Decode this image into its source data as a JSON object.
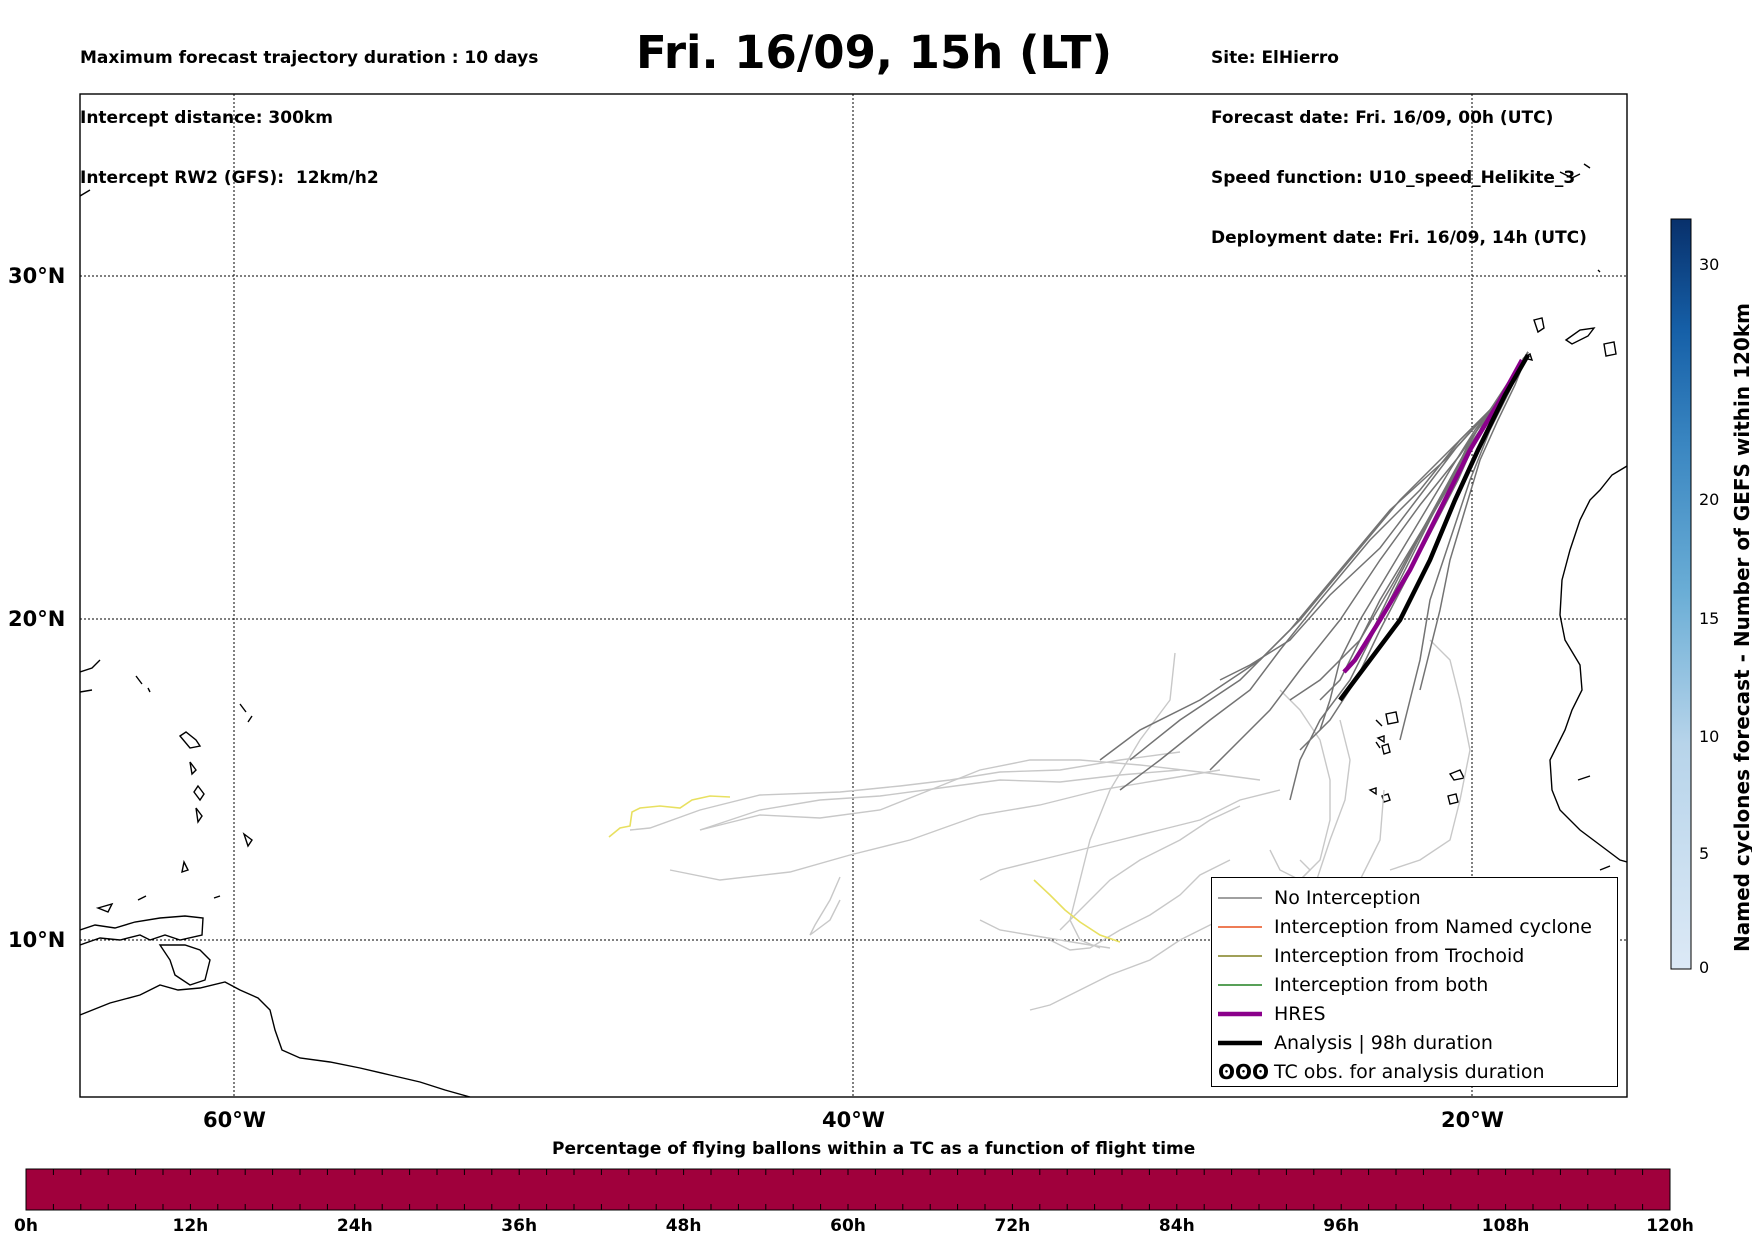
{
  "header": {
    "left_lines": [
      "Maximum forecast trajectory duration : 10 days",
      "Intercept distance: 300km",
      "Intercept RW2 (GFS):  12km/h2"
    ],
    "title": "Fri. 16/09, 15h (LT)",
    "right_lines": [
      "Site: ElHierro",
      "Forecast date: Fri. 16/09, 00h (UTC)",
      "Speed function: U10_speed_Helikite_3",
      "Deployment date: Fri. 16/09, 14h (UTC)"
    ]
  },
  "map": {
    "lat_labels": [
      "30°N",
      "20°N",
      "10°N"
    ],
    "lon_labels": [
      "60°W",
      "40°W",
      "20°W"
    ],
    "colors": {
      "no_interception": "#808080",
      "faded_track": "#c8c8c8",
      "yellow_track": "#e8e060",
      "named_cyclone": "#e8501e",
      "trochoid": "#808020",
      "both": "#208020",
      "hres": "#8b008b",
      "analysis": "#000000"
    }
  },
  "legend": {
    "items": [
      {
        "label": "No Interception",
        "color": "#808080",
        "style": "thin"
      },
      {
        "label": "Interception from Named cyclone",
        "color": "#e8501e",
        "style": "thin"
      },
      {
        "label": "Interception from Trochoid",
        "color": "#808020",
        "style": "thin"
      },
      {
        "label": "Interception from both",
        "color": "#208020",
        "style": "thin"
      },
      {
        "label": "HRES",
        "color": "#8b008b",
        "style": "thick"
      },
      {
        "label": "Analysis | 98h duration",
        "color": "#000000",
        "style": "thick"
      },
      {
        "label": "TC obs. for analysis duration",
        "color": "#000000",
        "style": "symbol",
        "symbol": "ʘʘʘ"
      }
    ]
  },
  "vertical_colorbar": {
    "title": "Named cyclones forecast - Number of GEFS within 120km",
    "ticks": [
      "0",
      "5",
      "10",
      "15",
      "20",
      "30"
    ],
    "range": [
      0,
      32
    ],
    "colors": [
      "#dce9f6",
      "#c6dbef",
      "#9ecae1",
      "#6baed6",
      "#4292c6",
      "#2171b5",
      "#08519c",
      "#08306b"
    ]
  },
  "bottom_colorbar": {
    "title": "Percentage of flying ballons within a TC as a function of flight time",
    "ticks": [
      "0h",
      "12h",
      "24h",
      "36h",
      "48h",
      "60h",
      "72h",
      "84h",
      "96h",
      "108h",
      "120h"
    ],
    "fill_color": "#a0003c"
  }
}
